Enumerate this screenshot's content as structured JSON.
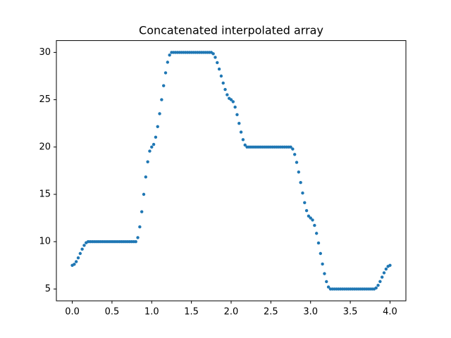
{
  "chart_data": {
    "type": "scatter",
    "title": "Concatenated interpolated array",
    "x": [
      0,
      0.025,
      0.05,
      0.075,
      0.1,
      0.125,
      0.15,
      0.175,
      0.2,
      0.225,
      0.25,
      0.275,
      0.3,
      0.325,
      0.35,
      0.375,
      0.4,
      0.425,
      0.45,
      0.475,
      0.5,
      0.525,
      0.55,
      0.575,
      0.6,
      0.625,
      0.65,
      0.675,
      0.7,
      0.725,
      0.75,
      0.775,
      0.8,
      0.825,
      0.85,
      0.875,
      0.9,
      0.925,
      0.95,
      0.975,
      1,
      1.025,
      1.05,
      1.075,
      1.1,
      1.125,
      1.15,
      1.175,
      1.2,
      1.225,
      1.25,
      1.275,
      1.3,
      1.325,
      1.35,
      1.375,
      1.4,
      1.425,
      1.45,
      1.475,
      1.5,
      1.525,
      1.55,
      1.575,
      1.6,
      1.625,
      1.65,
      1.675,
      1.7,
      1.725,
      1.75,
      1.775,
      1.8,
      1.825,
      1.85,
      1.875,
      1.9,
      1.925,
      1.95,
      1.975,
      2,
      2.025,
      2.05,
      2.075,
      2.1,
      2.125,
      2.15,
      2.175,
      2.2,
      2.225,
      2.25,
      2.275,
      2.3,
      2.325,
      2.35,
      2.375,
      2.4,
      2.425,
      2.45,
      2.475,
      2.5,
      2.525,
      2.55,
      2.575,
      2.6,
      2.625,
      2.65,
      2.675,
      2.7,
      2.725,
      2.75,
      2.775,
      2.8,
      2.825,
      2.85,
      2.875,
      2.9,
      2.925,
      2.95,
      2.975,
      3,
      3.025,
      3.05,
      3.075,
      3.1,
      3.125,
      3.15,
      3.175,
      3.2,
      3.225,
      3.25,
      3.275,
      3.3,
      3.325,
      3.35,
      3.375,
      3.4,
      3.425,
      3.45,
      3.475,
      3.5,
      3.525,
      3.55,
      3.575,
      3.6,
      3.625,
      3.65,
      3.675,
      3.7,
      3.725,
      3.75,
      3.775,
      3.8,
      3.825,
      3.85,
      3.875,
      3.9,
      3.925,
      3.95,
      3.975,
      4
    ],
    "series": [
      {
        "color": "#1f77b4",
        "values": [
          7.5,
          7.61,
          7.89,
          8.29,
          8.75,
          9.21,
          9.61,
          9.89,
          10,
          10,
          10,
          10,
          10,
          10,
          10,
          10,
          10,
          10,
          10,
          10,
          10,
          10,
          10,
          10,
          10,
          10,
          10,
          10,
          10,
          10,
          10,
          10,
          10,
          10.43,
          11.56,
          13.16,
          15,
          16.84,
          18.44,
          19.57,
          20,
          20.28,
          21.04,
          22.16,
          23.52,
          25,
          26.48,
          27.84,
          28.96,
          29.72,
          30,
          30,
          30,
          30,
          30,
          30,
          30,
          30,
          30,
          30,
          30,
          30,
          30,
          30,
          30,
          30,
          30,
          30,
          30,
          30,
          30,
          29.86,
          29.48,
          28.92,
          28.24,
          27.5,
          26.76,
          26.08,
          25.52,
          25.14,
          25,
          24.79,
          24.22,
          23.42,
          22.5,
          21.58,
          20.78,
          20.21,
          20,
          20,
          20,
          20,
          20,
          20,
          20,
          20,
          20,
          20,
          20,
          20,
          20,
          20,
          20,
          20,
          20,
          20,
          20,
          20,
          20,
          20,
          20,
          19.79,
          19.22,
          18.38,
          17.36,
          16.25,
          15.14,
          14.12,
          13.28,
          12.71,
          12.5,
          12.29,
          11.72,
          10.88,
          9.86,
          8.75,
          7.64,
          6.62,
          5.78,
          5.21,
          5,
          5,
          5,
          5,
          5,
          5,
          5,
          5,
          5,
          5,
          5,
          5,
          5,
          5,
          5,
          5,
          5,
          5,
          5,
          5,
          5,
          5,
          5,
          5.11,
          5.39,
          5.79,
          6.25,
          6.71,
          7.11,
          7.39,
          7.5
        ]
      }
    ],
    "xlim": [
      -0.2,
      4.2
    ],
    "ylim": [
      3.75,
      31.25
    ],
    "xticks": [
      {
        "value": 0,
        "label": "0.0"
      },
      0.5,
      {
        "value": 1,
        "label": "1.0"
      },
      1.5,
      {
        "value": 2,
        "label": "2.0"
      },
      2.5,
      {
        "value": 3,
        "label": "3.0"
      },
      3.5,
      {
        "value": 4,
        "label": "4.0"
      }
    ],
    "yticks": [
      5,
      10,
      15,
      20,
      25,
      30
    ]
  }
}
